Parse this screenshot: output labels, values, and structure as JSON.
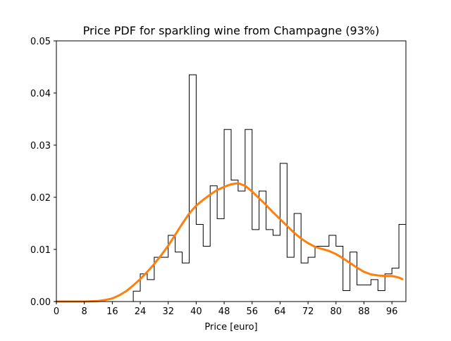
{
  "chart_data": {
    "type": "histogram",
    "title": "Price PDF for sparkling wine from Champagne (93%)",
    "xlabel": "Price [euro]",
    "ylabel": "",
    "xlim": [
      0,
      100
    ],
    "ylim": [
      0,
      0.05
    ],
    "xticks": [
      0,
      8,
      16,
      24,
      32,
      40,
      48,
      56,
      64,
      72,
      80,
      88,
      96
    ],
    "yticks": [
      0.0,
      0.01,
      0.02,
      0.03,
      0.04,
      0.05
    ],
    "ytick_labels": [
      "0.00",
      "0.01",
      "0.02",
      "0.03",
      "0.04",
      "0.05"
    ],
    "grid": false,
    "legend": "none",
    "histogram": {
      "bin_edges": [
        22,
        24,
        26,
        28,
        30,
        32,
        34,
        36,
        38,
        40,
        42,
        44,
        46,
        48,
        50,
        52,
        54,
        56,
        58,
        60,
        62,
        64,
        66,
        68,
        70,
        72,
        74,
        76,
        78,
        80,
        82,
        84,
        86,
        88,
        90,
        92,
        94,
        96,
        98,
        100
      ],
      "values": [
        0.002,
        0.0053,
        0.0042,
        0.0085,
        0.0085,
        0.0127,
        0.0095,
        0.0074,
        0.0435,
        0.0148,
        0.0106,
        0.0222,
        0.0159,
        0.033,
        0.0233,
        0.0212,
        0.033,
        0.0138,
        0.0212,
        0.0138,
        0.0127,
        0.0265,
        0.0085,
        0.0169,
        0.0074,
        0.0085,
        0.0106,
        0.0106,
        0.0127,
        0.0106,
        0.0021,
        0.0095,
        0.0032,
        0.0032,
        0.0042,
        0.0021,
        0.0053,
        0.0064,
        0.0148
      ],
      "color": "#000000"
    },
    "kde": {
      "x": [
        0,
        8,
        12,
        14,
        16,
        18,
        20,
        22,
        24,
        26,
        28,
        30,
        32,
        34,
        36,
        38,
        40,
        42,
        44,
        46,
        48,
        50,
        52,
        54,
        56,
        58,
        60,
        62,
        64,
        66,
        68,
        70,
        72,
        74,
        76,
        78,
        80,
        82,
        84,
        86,
        88,
        90,
        92,
        94,
        96,
        98,
        99
      ],
      "y": [
        0,
        0,
        0.0001,
        0.0003,
        0.0006,
        0.0012,
        0.002,
        0.0031,
        0.0043,
        0.0057,
        0.0072,
        0.0089,
        0.0107,
        0.0128,
        0.0149,
        0.0169,
        0.0184,
        0.0195,
        0.0205,
        0.0214,
        0.022,
        0.0225,
        0.0227,
        0.0222,
        0.0211,
        0.0198,
        0.0185,
        0.0171,
        0.0158,
        0.0145,
        0.0132,
        0.0121,
        0.0112,
        0.0105,
        0.0101,
        0.0097,
        0.0091,
        0.0083,
        0.0074,
        0.0065,
        0.0057,
        0.0052,
        0.005,
        0.0049,
        0.0049,
        0.0046,
        0.0043
      ],
      "color": "#ff7f0e"
    }
  }
}
